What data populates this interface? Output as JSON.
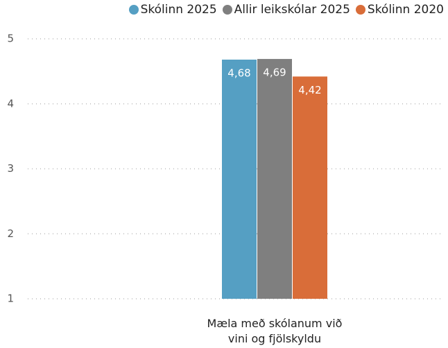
{
  "chart_data": {
    "type": "bar",
    "categories": [
      "Mæla með skólanum við vini og fjölskyldu"
    ],
    "series": [
      {
        "name": "Skólinn 2025",
        "color": "#559fc3",
        "values": [
          4.68
        ],
        "value_labels": [
          "4,68"
        ]
      },
      {
        "name": "Allir leikskólar 2025",
        "color": "#7f7f7f",
        "values": [
          4.69
        ],
        "value_labels": [
          "4,69"
        ]
      },
      {
        "name": "Skólinn 2020",
        "color": "#d96d39",
        "values": [
          4.42
        ],
        "value_labels": [
          "4,42"
        ]
      }
    ],
    "ylim": [
      1,
      5
    ],
    "yticks": [
      1,
      2,
      3,
      4,
      5
    ],
    "grid": true,
    "legend": "top-right"
  }
}
